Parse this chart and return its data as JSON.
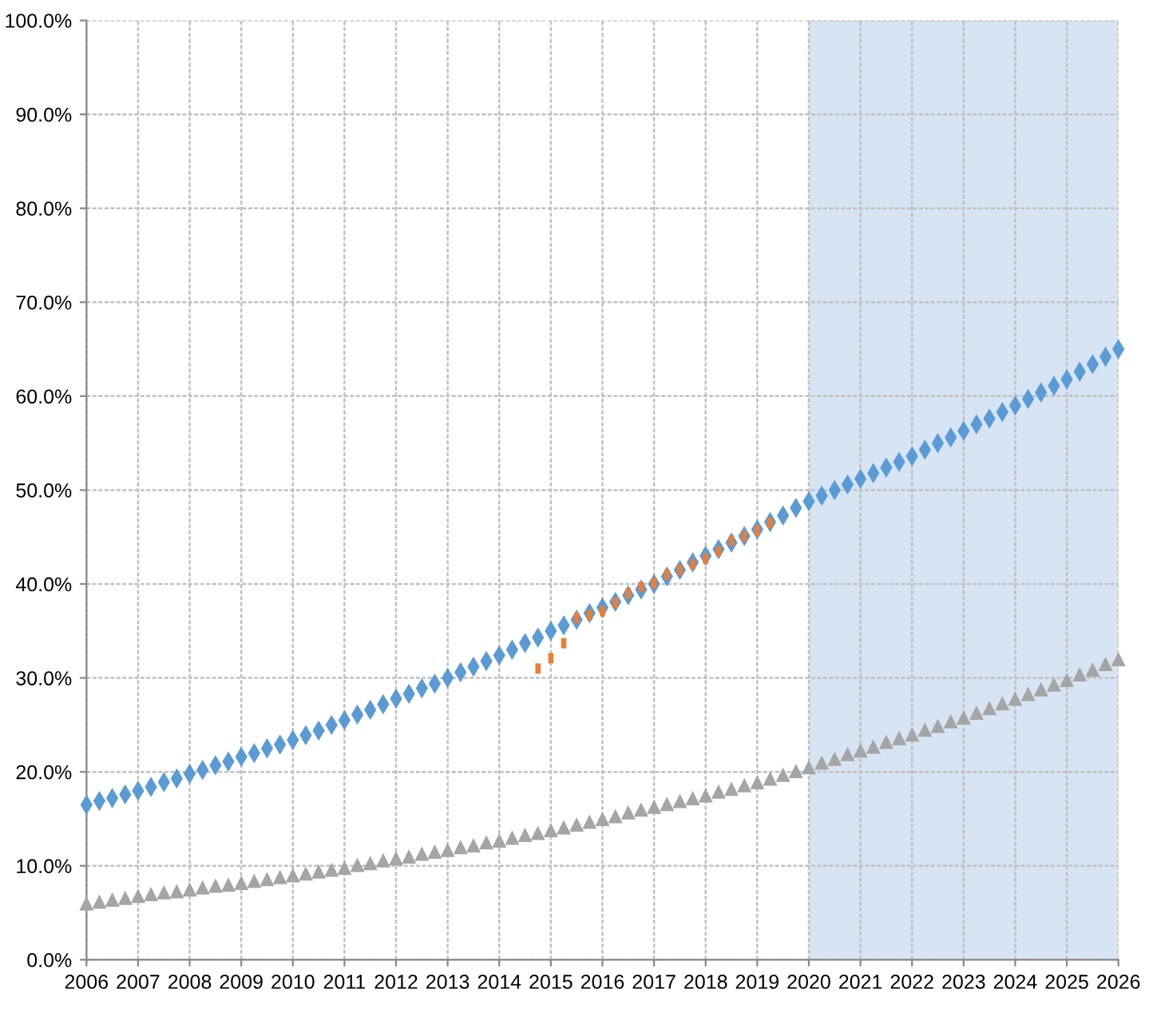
{
  "chart_data": {
    "type": "scatter",
    "xlim": [
      2006,
      2026
    ],
    "ylim": [
      0,
      100
    ],
    "xticks": [
      2006,
      2007,
      2008,
      2009,
      2010,
      2011,
      2012,
      2013,
      2014,
      2015,
      2016,
      2017,
      2018,
      2019,
      2020,
      2021,
      2022,
      2023,
      2024,
      2025,
      2026
    ],
    "yticks": [
      {
        "value": 0,
        "label": "0.0%"
      },
      {
        "value": 10,
        "label": "10.0%"
      },
      {
        "value": 20,
        "label": "20.0%"
      },
      {
        "value": 30,
        "label": "30.0%"
      },
      {
        "value": 40,
        "label": "40.0%"
      },
      {
        "value": 50,
        "label": "50.0%"
      },
      {
        "value": 60,
        "label": "60.0%"
      },
      {
        "value": 70,
        "label": "70.0%"
      },
      {
        "value": 80,
        "label": "80.0%"
      },
      {
        "value": 90,
        "label": "90.0%"
      },
      {
        "value": 100,
        "label": "100.0%"
      }
    ],
    "grid": true,
    "legend": false,
    "bands": [
      {
        "axis": "x",
        "from": 2020,
        "to": 2026,
        "color": "#d6e4f3"
      }
    ],
    "series": [
      {
        "color": "#5b9bd5",
        "marker": "diamond",
        "x": [
          2006,
          2006.25,
          2006.5,
          2006.75,
          2007,
          2007.25,
          2007.5,
          2007.75,
          2008,
          2008.25,
          2008.5,
          2008.75,
          2009,
          2009.25,
          2009.5,
          2009.75,
          2010,
          2010.25,
          2010.5,
          2010.75,
          2011,
          2011.25,
          2011.5,
          2011.75,
          2012,
          2012.25,
          2012.5,
          2012.75,
          2013,
          2013.25,
          2013.5,
          2013.75,
          2014,
          2014.25,
          2014.5,
          2014.75,
          2015,
          2015.25,
          2015.5,
          2015.75,
          2016,
          2016.25,
          2016.5,
          2016.75,
          2017,
          2017.25,
          2017.5,
          2017.75,
          2018,
          2018.25,
          2018.5,
          2018.75,
          2019,
          2019.25,
          2019.5,
          2019.75,
          2020,
          2020.25,
          2020.5,
          2020.75,
          2021,
          2021.25,
          2021.5,
          2021.75,
          2022,
          2022.25,
          2022.5,
          2022.75,
          2023,
          2023.25,
          2023.5,
          2023.75,
          2024,
          2024.25,
          2024.5,
          2024.75,
          2025,
          2025.25,
          2025.5,
          2025.75,
          2026
        ],
        "values": [
          16.5,
          16.9,
          17.2,
          17.6,
          18.0,
          18.4,
          18.9,
          19.3,
          19.8,
          20.2,
          20.7,
          21.1,
          21.6,
          22.0,
          22.5,
          22.9,
          23.4,
          23.9,
          24.4,
          25.0,
          25.5,
          26.1,
          26.6,
          27.2,
          27.8,
          28.3,
          28.9,
          29.4,
          30.0,
          30.6,
          31.2,
          31.8,
          32.4,
          33.0,
          33.7,
          34.3,
          35.0,
          35.6,
          36.2,
          36.9,
          37.5,
          38.1,
          38.8,
          39.4,
          40.0,
          40.8,
          41.5,
          42.3,
          43.0,
          43.7,
          44.4,
          45.1,
          45.8,
          46.6,
          47.3,
          48.1,
          48.8,
          49.4,
          50.0,
          50.6,
          51.2,
          51.8,
          52.4,
          53.0,
          53.6,
          54.3,
          55.0,
          55.6,
          56.3,
          57.0,
          57.6,
          58.3,
          59.0,
          59.7,
          60.4,
          61.1,
          61.8,
          62.6,
          63.4,
          64.2,
          65.0
        ]
      },
      {
        "color": "#ed7d31",
        "marker": "square",
        "x": [
          2014.75,
          2015,
          2015.25,
          2015.5,
          2015.75,
          2016,
          2016.25,
          2016.5,
          2016.75,
          2017,
          2017.25,
          2017.5,
          2017.75,
          2018,
          2018.25,
          2018.5,
          2018.75,
          2019,
          2019.25
        ],
        "values": [
          31.0,
          32.1,
          33.7,
          36.4,
          36.7,
          37.1,
          38.0,
          39.0,
          39.7,
          40.1,
          41.0,
          41.5,
          42.1,
          42.7,
          43.5,
          44.6,
          45.1,
          45.7,
          46.5
        ]
      },
      {
        "color": "#a5a5a5",
        "marker": "triangle",
        "x": [
          2006,
          2006.25,
          2006.5,
          2006.75,
          2007,
          2007.25,
          2007.5,
          2007.75,
          2008,
          2008.25,
          2008.5,
          2008.75,
          2009,
          2009.25,
          2009.5,
          2009.75,
          2010,
          2010.25,
          2010.5,
          2010.75,
          2011,
          2011.25,
          2011.5,
          2011.75,
          2012,
          2012.25,
          2012.5,
          2012.75,
          2013,
          2013.25,
          2013.5,
          2013.75,
          2014,
          2014.25,
          2014.5,
          2014.75,
          2015,
          2015.25,
          2015.5,
          2015.75,
          2016,
          2016.25,
          2016.5,
          2016.75,
          2017,
          2017.25,
          2017.5,
          2017.75,
          2018,
          2018.25,
          2018.5,
          2018.75,
          2019,
          2019.25,
          2019.5,
          2019.75,
          2020,
          2020.25,
          2020.5,
          2020.75,
          2021,
          2021.25,
          2021.5,
          2021.75,
          2022,
          2022.25,
          2022.5,
          2022.75,
          2023,
          2023.25,
          2023.5,
          2023.75,
          2024,
          2024.25,
          2024.5,
          2024.75,
          2025,
          2025.25,
          2025.5,
          2025.75,
          2026
        ],
        "values": [
          6.0,
          6.2,
          6.4,
          6.6,
          6.8,
          7.0,
          7.2,
          7.3,
          7.5,
          7.7,
          7.9,
          8.0,
          8.2,
          8.4,
          8.6,
          8.8,
          9.0,
          9.2,
          9.4,
          9.6,
          9.8,
          10.1,
          10.3,
          10.6,
          10.8,
          11.0,
          11.3,
          11.5,
          11.7,
          12.0,
          12.2,
          12.5,
          12.7,
          13.0,
          13.3,
          13.5,
          13.8,
          14.1,
          14.4,
          14.7,
          15.0,
          15.3,
          15.7,
          16.0,
          16.3,
          16.6,
          16.9,
          17.2,
          17.5,
          17.9,
          18.2,
          18.6,
          18.9,
          19.3,
          19.7,
          20.1,
          20.5,
          21.0,
          21.4,
          21.9,
          22.3,
          22.7,
          23.2,
          23.6,
          24.0,
          24.5,
          24.9,
          25.4,
          25.8,
          26.3,
          26.8,
          27.3,
          27.8,
          28.3,
          28.8,
          29.3,
          29.8,
          30.4,
          30.9,
          31.5,
          32.0
        ]
      }
    ]
  }
}
